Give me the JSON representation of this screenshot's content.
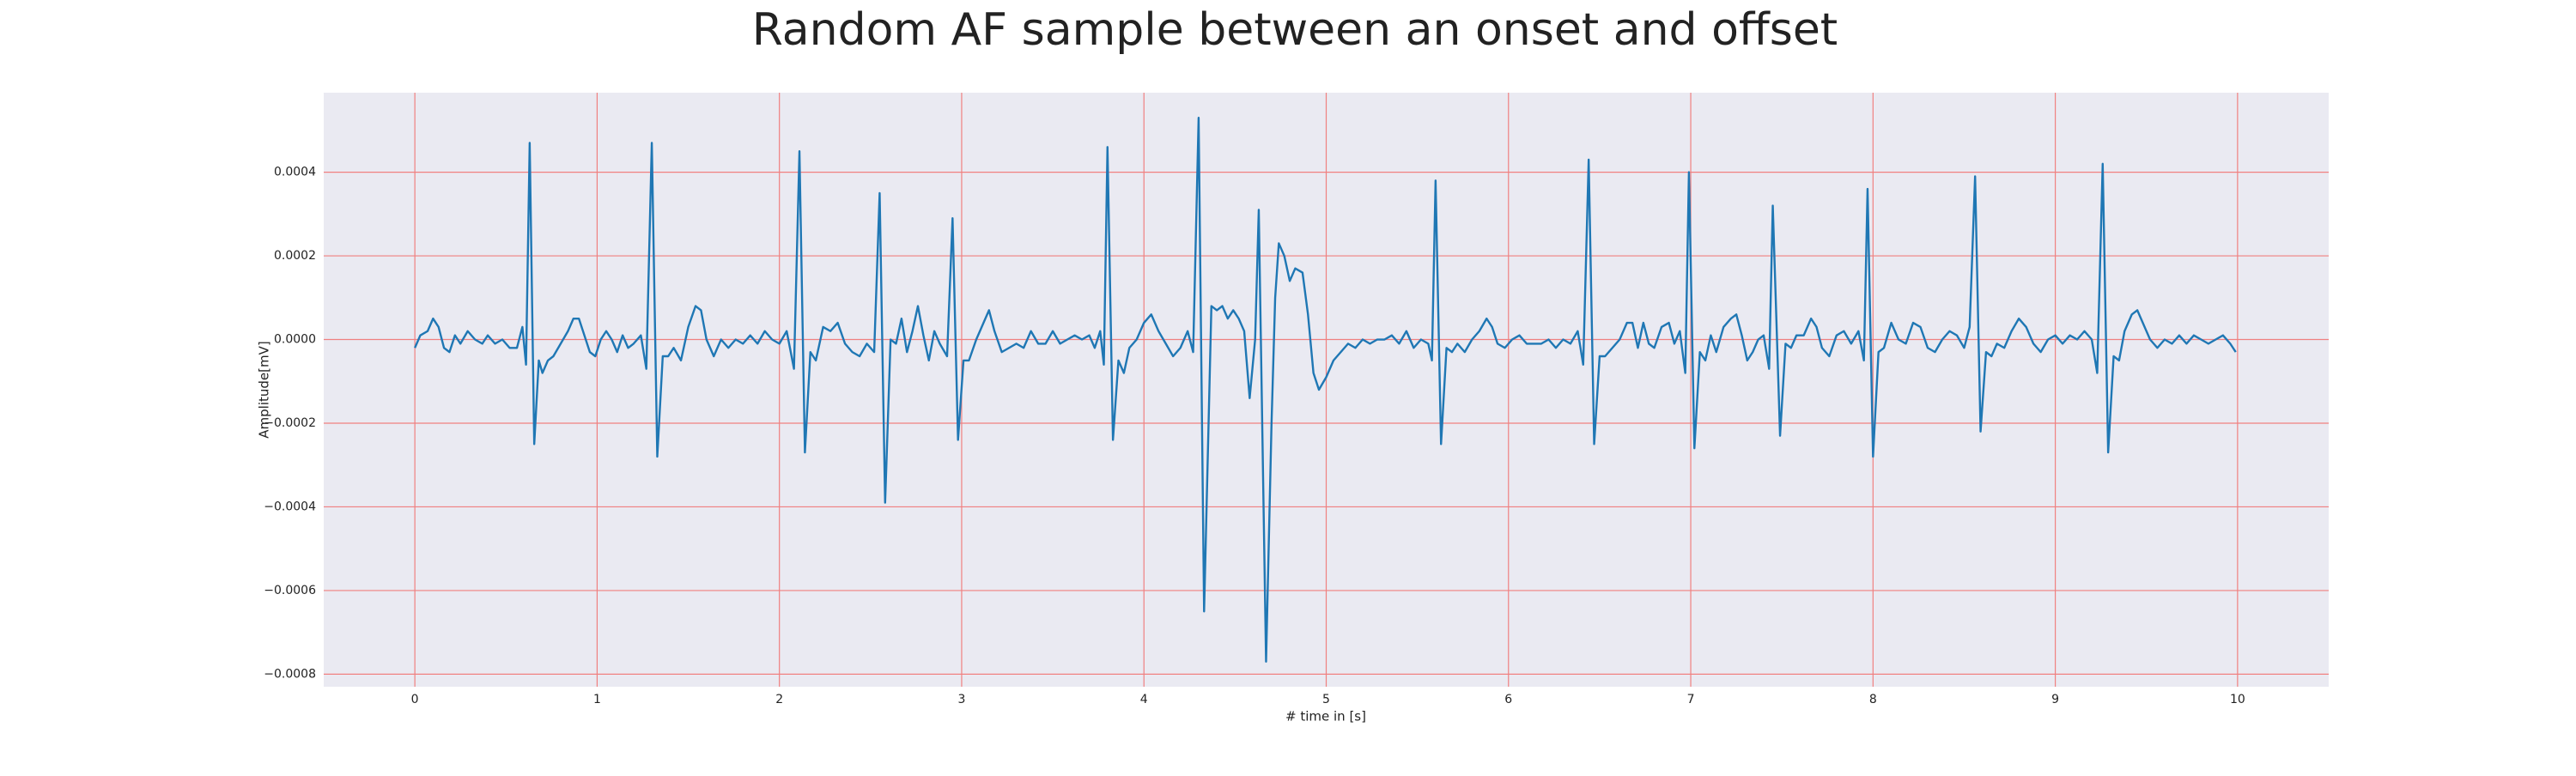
{
  "chart_data": {
    "type": "line",
    "title": "Random AF sample between an onset and offset",
    "x_label": "# time in [s]",
    "y_label": "Amplitude[mV]",
    "color": "#1f77b4",
    "grid": true,
    "xlim": [
      -0.5,
      10.5
    ],
    "ylim": [
      -0.00083,
      0.00059
    ],
    "xticks": [
      0,
      1,
      2,
      3,
      4,
      5,
      6,
      7,
      8,
      9,
      10
    ],
    "yticks": [
      {
        "value": -0.0008,
        "label": "−0.0008"
      },
      {
        "value": -0.0006,
        "label": "−0.0006"
      },
      {
        "value": -0.0004,
        "label": "−0.0004"
      },
      {
        "value": -0.0002,
        "label": "−0.0002"
      },
      {
        "value": 0,
        "label": "0.0000"
      },
      {
        "value": 0.0002,
        "label": "0.0002"
      },
      {
        "value": 0.0004,
        "label": "0.0004"
      }
    ],
    "x": [
      0.0,
      0.03,
      0.07,
      0.1,
      0.13,
      0.16,
      0.19,
      0.22,
      0.25,
      0.29,
      0.33,
      0.37,
      0.4,
      0.44,
      0.48,
      0.52,
      0.56,
      0.59,
      0.61,
      0.63,
      0.655,
      0.68,
      0.7,
      0.73,
      0.76,
      0.8,
      0.84,
      0.87,
      0.9,
      0.93,
      0.96,
      0.99,
      1.02,
      1.05,
      1.08,
      1.11,
      1.14,
      1.17,
      1.2,
      1.24,
      1.27,
      1.3,
      1.33,
      1.36,
      1.39,
      1.42,
      1.46,
      1.5,
      1.54,
      1.57,
      1.6,
      1.64,
      1.68,
      1.72,
      1.76,
      1.8,
      1.84,
      1.88,
      1.92,
      1.96,
      2.0,
      2.04,
      2.08,
      2.11,
      2.14,
      2.17,
      2.2,
      2.24,
      2.28,
      2.32,
      2.36,
      2.4,
      2.44,
      2.48,
      2.52,
      2.55,
      2.58,
      2.61,
      2.64,
      2.67,
      2.7,
      2.73,
      2.76,
      2.79,
      2.82,
      2.85,
      2.88,
      2.92,
      2.95,
      2.98,
      3.01,
      3.04,
      3.08,
      3.12,
      3.15,
      3.18,
      3.22,
      3.26,
      3.3,
      3.34,
      3.38,
      3.42,
      3.46,
      3.5,
      3.54,
      3.58,
      3.62,
      3.66,
      3.7,
      3.73,
      3.76,
      3.78,
      3.8,
      3.83,
      3.86,
      3.89,
      3.92,
      3.96,
      4.0,
      4.04,
      4.08,
      4.12,
      4.16,
      4.2,
      4.24,
      4.27,
      4.3,
      4.33,
      4.37,
      4.4,
      4.43,
      4.46,
      4.49,
      4.52,
      4.55,
      4.58,
      4.61,
      4.63,
      4.67,
      4.7,
      4.72,
      4.74,
      4.77,
      4.8,
      4.83,
      4.87,
      4.9,
      4.93,
      4.96,
      5.0,
      5.04,
      5.08,
      5.12,
      5.16,
      5.2,
      5.24,
      5.28,
      5.32,
      5.36,
      5.4,
      5.44,
      5.48,
      5.52,
      5.56,
      5.58,
      5.6,
      5.63,
      5.66,
      5.69,
      5.72,
      5.76,
      5.8,
      5.84,
      5.88,
      5.91,
      5.94,
      5.98,
      6.02,
      6.06,
      6.1,
      6.14,
      6.18,
      6.22,
      6.26,
      6.3,
      6.34,
      6.38,
      6.41,
      6.44,
      6.47,
      6.5,
      6.53,
      6.57,
      6.61,
      6.65,
      6.68,
      6.71,
      6.74,
      6.77,
      6.8,
      6.84,
      6.88,
      6.91,
      6.94,
      6.97,
      6.99,
      7.02,
      7.05,
      7.08,
      7.11,
      7.14,
      7.18,
      7.22,
      7.25,
      7.28,
      7.31,
      7.34,
      7.37,
      7.4,
      7.43,
      7.45,
      7.49,
      7.52,
      7.55,
      7.58,
      7.62,
      7.66,
      7.69,
      7.72,
      7.76,
      7.8,
      7.84,
      7.88,
      7.92,
      7.95,
      7.97,
      8.0,
      8.03,
      8.06,
      8.1,
      8.14,
      8.18,
      8.22,
      8.26,
      8.3,
      8.34,
      8.38,
      8.42,
      8.46,
      8.5,
      8.53,
      8.56,
      8.59,
      8.62,
      8.65,
      8.68,
      8.72,
      8.76,
      8.8,
      8.84,
      8.88,
      8.92,
      8.96,
      9.0,
      9.04,
      9.08,
      9.12,
      9.16,
      9.2,
      9.23,
      9.26,
      9.29,
      9.32,
      9.35,
      9.38,
      9.42,
      9.45,
      9.48,
      9.52,
      9.56,
      9.6,
      9.64,
      9.68,
      9.72,
      9.76,
      9.8,
      9.84,
      9.88,
      9.92,
      9.96,
      9.99
    ],
    "values": [
      -2e-05,
      1e-05,
      2e-05,
      5e-05,
      3e-05,
      -2e-05,
      -3e-05,
      1e-05,
      -1e-05,
      2e-05,
      0,
      -1e-05,
      1e-05,
      -1e-05,
      0,
      -2e-05,
      -2e-05,
      3e-05,
      -6e-05,
      0.00047,
      -0.00025,
      -5e-05,
      -8e-05,
      -5e-05,
      -4e-05,
      -1e-05,
      2e-05,
      5e-05,
      5e-05,
      1e-05,
      -3e-05,
      -4e-05,
      0,
      2e-05,
      0,
      -3e-05,
      1e-05,
      -2e-05,
      -1e-05,
      1e-05,
      -7e-05,
      0.00047,
      -0.00028,
      -4e-05,
      -4e-05,
      -2e-05,
      -5e-05,
      3e-05,
      8e-05,
      7e-05,
      0,
      -4e-05,
      0,
      -2e-05,
      0,
      -1e-05,
      1e-05,
      -1e-05,
      2e-05,
      0,
      -1e-05,
      2e-05,
      -7e-05,
      0.00045,
      -0.00027,
      -3e-05,
      -5e-05,
      3e-05,
      2e-05,
      4e-05,
      -1e-05,
      -3e-05,
      -4e-05,
      -1e-05,
      -3e-05,
      0.00035,
      -0.00039,
      0,
      -1e-05,
      5e-05,
      -3e-05,
      2e-05,
      8e-05,
      1e-05,
      -5e-05,
      2e-05,
      -1e-05,
      -4e-05,
      0.00029,
      -0.00024,
      -5e-05,
      -5e-05,
      0,
      4e-05,
      7e-05,
      2e-05,
      -3e-05,
      -2e-05,
      -1e-05,
      -2e-05,
      2e-05,
      -1e-05,
      -1e-05,
      2e-05,
      -1e-05,
      0,
      1e-05,
      0,
      1e-05,
      -2e-05,
      2e-05,
      -6e-05,
      0.00046,
      -0.00024,
      -5e-05,
      -8e-05,
      -2e-05,
      0,
      4e-05,
      6e-05,
      2e-05,
      -1e-05,
      -4e-05,
      -2e-05,
      2e-05,
      -3e-05,
      0.00053,
      -0.00065,
      8e-05,
      7e-05,
      8e-05,
      5e-05,
      7e-05,
      5e-05,
      2e-05,
      -0.00014,
      0,
      0.00031,
      -0.00077,
      -0.0002,
      0.0001,
      0.00023,
      0.0002,
      0.00014,
      0.00017,
      0.00016,
      6e-05,
      -8e-05,
      -0.00012,
      -9e-05,
      -5e-05,
      -3e-05,
      -1e-05,
      -2e-05,
      0,
      -1e-05,
      0,
      0,
      1e-05,
      -1e-05,
      2e-05,
      -2e-05,
      0,
      -1e-05,
      -5e-05,
      0.00038,
      -0.00025,
      -2e-05,
      -3e-05,
      -1e-05,
      -3e-05,
      0,
      2e-05,
      5e-05,
      3e-05,
      -1e-05,
      -2e-05,
      0,
      1e-05,
      -1e-05,
      -1e-05,
      -1e-05,
      0,
      -2e-05,
      0,
      -1e-05,
      2e-05,
      -6e-05,
      0.00043,
      -0.00025,
      -4e-05,
      -4e-05,
      -2e-05,
      0,
      4e-05,
      4e-05,
      -2e-05,
      4e-05,
      -1e-05,
      -2e-05,
      3e-05,
      4e-05,
      -1e-05,
      2e-05,
      -8e-05,
      0.0004,
      -0.00026,
      -3e-05,
      -5e-05,
      1e-05,
      -3e-05,
      3e-05,
      5e-05,
      6e-05,
      1e-05,
      -5e-05,
      -3e-05,
      0,
      1e-05,
      -7e-05,
      0.00032,
      -0.00023,
      -1e-05,
      -2e-05,
      1e-05,
      1e-05,
      5e-05,
      3e-05,
      -2e-05,
      -4e-05,
      1e-05,
      2e-05,
      -1e-05,
      2e-05,
      -5e-05,
      0.00036,
      -0.00028,
      -3e-05,
      -2e-05,
      4e-05,
      0,
      -1e-05,
      4e-05,
      3e-05,
      -2e-05,
      -3e-05,
      0,
      2e-05,
      1e-05,
      -2e-05,
      3e-05,
      0.00039,
      -0.00022,
      -3e-05,
      -4e-05,
      -1e-05,
      -2e-05,
      2e-05,
      5e-05,
      3e-05,
      -1e-05,
      -3e-05,
      0,
      1e-05,
      -1e-05,
      1e-05,
      0,
      2e-05,
      0,
      -8e-05,
      0.00042,
      -0.00027,
      -4e-05,
      -5e-05,
      2e-05,
      6e-05,
      7e-05,
      4e-05,
      0,
      -2e-05,
      0,
      -1e-05,
      1e-05,
      -1e-05,
      1e-05,
      0,
      -1e-05,
      0,
      1e-05,
      -1e-05,
      -3e-05
    ]
  }
}
